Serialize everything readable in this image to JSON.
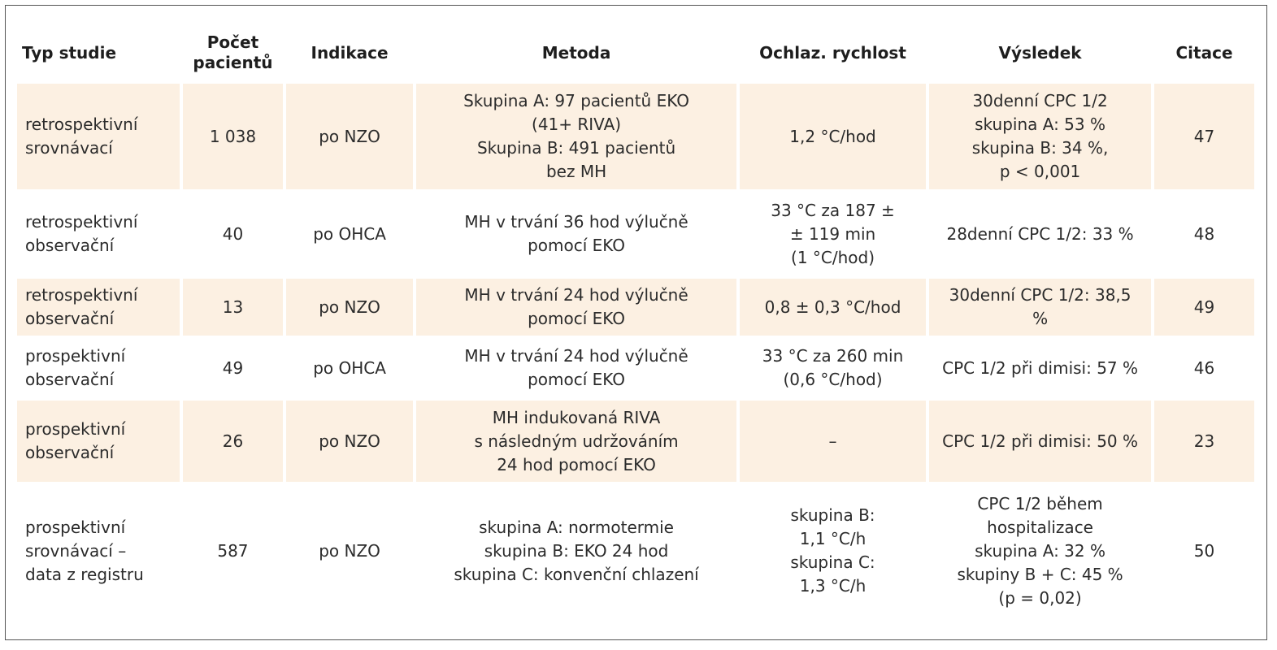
{
  "table": {
    "headers": [
      "Typ studie",
      "Počet\npacientů",
      "Indikace",
      "Metoda",
      "Ochlaz. rychlost",
      "Výsledek",
      "Citace"
    ],
    "rows": [
      {
        "typ": "retrospektivní\nsrovnávací",
        "pocet": "1 038",
        "indikace": "po NZO",
        "metoda": "Skupina A: 97 pacientů EKO\n(41+ RIVA)\nSkupina B: 491 pacientů\nbez MH",
        "rychlost": "1,2 °C/hod",
        "vysledek": "30denní CPC 1/2\nskupina A: 53 %\nskupina B: 34 %,\np < 0,001",
        "citace": "47"
      },
      {
        "typ": "retrospektivní\nobservační",
        "pocet": "40",
        "indikace": "po OHCA",
        "metoda": "MH v trvání 36 hod výlučně\npomocí EKO",
        "rychlost": "33 °C za 187 ±\n± 119 min\n(1 °C/hod)",
        "vysledek": "28denní CPC 1/2: 33 %",
        "citace": "48"
      },
      {
        "typ": "retrospektivní\nobservační",
        "pocet": "13",
        "indikace": "po NZO",
        "metoda": "MH v trvání 24 hod výlučně\npomocí EKO",
        "rychlost": "0,8 ± 0,3 °C/hod",
        "vysledek": "30denní CPC 1/2: 38,5\n%",
        "citace": "49"
      },
      {
        "typ": "prospektivní\nobservační",
        "pocet": "49",
        "indikace": "po OHCA",
        "metoda": "MH v trvání 24 hod výlučně\npomocí EKO",
        "rychlost": "33 °C za 260 min\n(0,6 °C/hod)",
        "vysledek": "CPC 1/2 při dimisi: 57 %",
        "citace": "46"
      },
      {
        "typ": "prospektivní\nobservační",
        "pocet": "26",
        "indikace": "po NZO",
        "metoda": "MH indukovaná RIVA\ns následným udržováním\n24 hod pomocí EKO",
        "rychlost": "–",
        "vysledek": "CPC 1/2 při dimisi: 50 %",
        "citace": "23"
      },
      {
        "typ": "prospektivní\nsrovnávací –\ndata z registru",
        "pocet": "587",
        "indikace": "po NZO",
        "metoda": "skupina A: normotermie\nskupina B: EKO 24 hod\nskupina C: konvenční chlazení",
        "rychlost": "skupina B:\n1,1 °C/h\nskupina C:\n1,3 °C/h",
        "vysledek": "CPC 1/2 během\nhospitalizace\nskupina A: 32 %\nskupiny B + C: 45 %\n(p = 0,02)",
        "citace": "50"
      }
    ]
  }
}
